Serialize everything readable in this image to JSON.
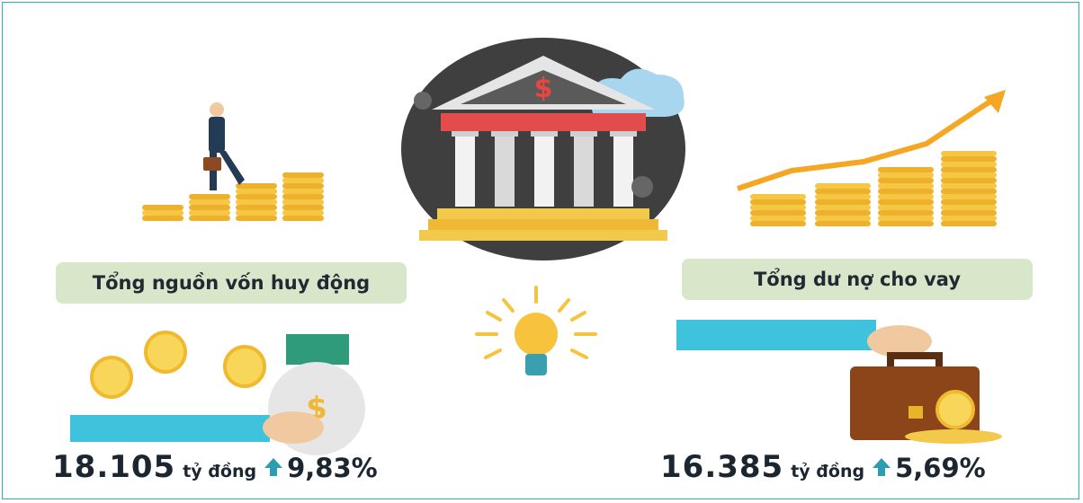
{
  "left": {
    "label": "Tổng nguồn vốn huy động",
    "amount": "18.105",
    "unit": "tỷ đồng",
    "change": "9,83%"
  },
  "right": {
    "label": "Tổng dư nợ cho vay",
    "amount": "16.385",
    "unit": "tỷ đồng",
    "change": "5,69%"
  }
}
